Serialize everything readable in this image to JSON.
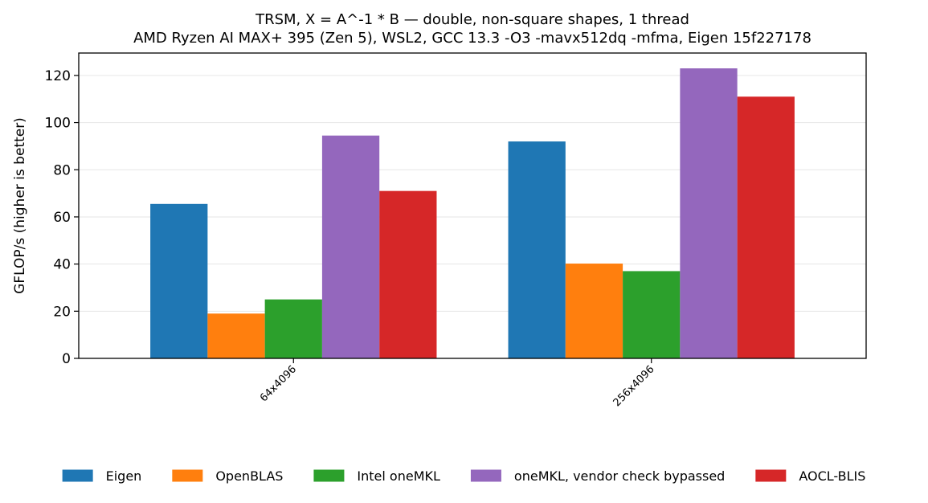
{
  "chart_data": {
    "type": "bar",
    "title": "TRSM, X = A^-1 * B — double, non-square shapes, 1 thread",
    "subtitle": "AMD Ryzen AI MAX+ 395 (Zen 5), WSL2, GCC 13.3 -O3 -mavx512dq -mfma, Eigen 15f227178",
    "xlabel": "",
    "ylabel": "GFLOP/s (higher is better)",
    "categories": [
      "64x4096",
      "256x4096"
    ],
    "ylim": [
      0,
      129.5
    ],
    "yticks": [
      0,
      20,
      40,
      60,
      80,
      100,
      120
    ],
    "grid": "horizontal",
    "legend_position": "bottom",
    "series": [
      {
        "name": "Eigen",
        "color": "#1f77b4",
        "values": [
          65.5,
          92.0
        ]
      },
      {
        "name": "OpenBLAS",
        "color": "#ff7f0e",
        "values": [
          19.0,
          40.2
        ]
      },
      {
        "name": "Intel oneMKL",
        "color": "#2ca02c",
        "values": [
          25.0,
          37.0
        ]
      },
      {
        "name": "oneMKL, vendor check bypassed",
        "color": "#9467bd",
        "values": [
          94.5,
          123.0
        ]
      },
      {
        "name": "AOCL-BLIS",
        "color": "#d62728",
        "values": [
          71.0,
          111.0
        ]
      }
    ]
  }
}
